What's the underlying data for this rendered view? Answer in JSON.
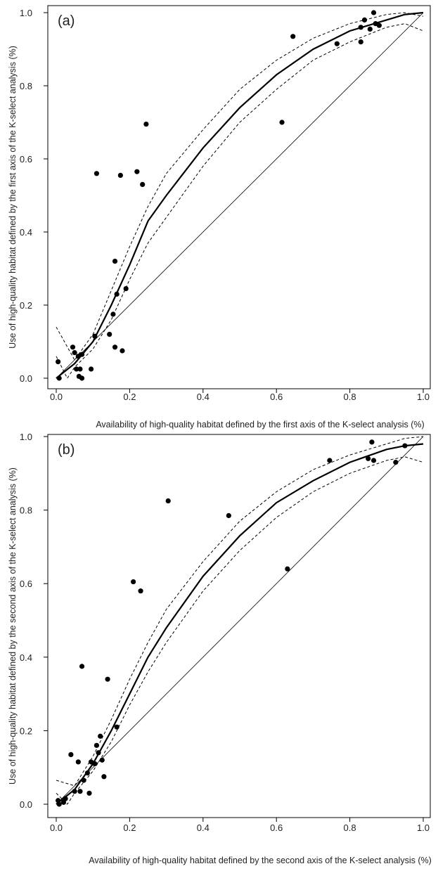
{
  "chart_data": [
    {
      "type": "scatter",
      "panel_label": "(a)",
      "xlabel": "Availability of high-quality habitat defined by the first axis of the K-select analysis (%)",
      "ylabel": "Use of high-quality habitat defined by the first axis of the K-select analysis (%)",
      "xlim": [
        0,
        1
      ],
      "ylim": [
        0,
        1
      ],
      "x_ticks": [
        "0.0",
        "0.2",
        "0.4",
        "0.6",
        "0.8",
        "1.0"
      ],
      "y_ticks": [
        "0.0",
        "0.2",
        "0.4",
        "0.6",
        "0.8",
        "1.0"
      ],
      "reference_line": "y = x",
      "fit_curve": {
        "style": "solid",
        "x": [
          0.0,
          0.05,
          0.1,
          0.15,
          0.2,
          0.25,
          0.3,
          0.4,
          0.5,
          0.6,
          0.7,
          0.8,
          0.9,
          0.95,
          1.0
        ],
        "y": [
          0.0,
          0.04,
          0.1,
          0.2,
          0.31,
          0.43,
          0.5,
          0.63,
          0.74,
          0.83,
          0.9,
          0.95,
          0.98,
          0.995,
          1.0
        ]
      },
      "ci_upper": {
        "style": "dashed",
        "x": [
          0.0,
          0.05,
          0.1,
          0.15,
          0.2,
          0.25,
          0.3,
          0.4,
          0.5,
          0.6,
          0.7,
          0.8,
          0.9,
          0.95,
          1.0
        ],
        "y": [
          0.14,
          0.05,
          0.12,
          0.24,
          0.36,
          0.47,
          0.56,
          0.68,
          0.79,
          0.87,
          0.93,
          0.97,
          0.995,
          1.0,
          0.99
        ]
      },
      "ci_lower": {
        "style": "dashed",
        "x": [
          0.0,
          0.03,
          0.05,
          0.1,
          0.15,
          0.2,
          0.25,
          0.3,
          0.4,
          0.5,
          0.6,
          0.7,
          0.8,
          0.9,
          0.95,
          1.0
        ],
        "y": [
          0.06,
          0.0,
          0.03,
          0.08,
          0.16,
          0.27,
          0.37,
          0.44,
          0.58,
          0.7,
          0.79,
          0.87,
          0.92,
          0.96,
          0.97,
          0.95
        ]
      },
      "points": [
        {
          "x": 0.005,
          "y": 0.045
        },
        {
          "x": 0.008,
          "y": 0.0
        },
        {
          "x": 0.045,
          "y": 0.085
        },
        {
          "x": 0.05,
          "y": 0.07
        },
        {
          "x": 0.055,
          "y": 0.025
        },
        {
          "x": 0.06,
          "y": 0.06
        },
        {
          "x": 0.062,
          "y": 0.005
        },
        {
          "x": 0.065,
          "y": 0.025
        },
        {
          "x": 0.07,
          "y": 0.0
        },
        {
          "x": 0.07,
          "y": 0.065
        },
        {
          "x": 0.095,
          "y": 0.025
        },
        {
          "x": 0.105,
          "y": 0.115
        },
        {
          "x": 0.11,
          "y": 0.56
        },
        {
          "x": 0.145,
          "y": 0.12
        },
        {
          "x": 0.155,
          "y": 0.175
        },
        {
          "x": 0.16,
          "y": 0.32
        },
        {
          "x": 0.16,
          "y": 0.085
        },
        {
          "x": 0.165,
          "y": 0.23
        },
        {
          "x": 0.175,
          "y": 0.555
        },
        {
          "x": 0.18,
          "y": 0.075
        },
        {
          "x": 0.19,
          "y": 0.245
        },
        {
          "x": 0.22,
          "y": 0.565
        },
        {
          "x": 0.235,
          "y": 0.53
        },
        {
          "x": 0.245,
          "y": 0.695
        },
        {
          "x": 0.615,
          "y": 0.7
        },
        {
          "x": 0.645,
          "y": 0.935
        },
        {
          "x": 0.765,
          "y": 0.915
        },
        {
          "x": 0.83,
          "y": 0.96
        },
        {
          "x": 0.83,
          "y": 0.92
        },
        {
          "x": 0.84,
          "y": 0.98
        },
        {
          "x": 0.855,
          "y": 0.955
        },
        {
          "x": 0.865,
          "y": 1.0
        },
        {
          "x": 0.87,
          "y": 0.97
        },
        {
          "x": 0.88,
          "y": 0.965
        }
      ]
    },
    {
      "type": "scatter",
      "panel_label": "(b)",
      "xlabel": "Availability of high-quality habitat defined by the second axis of the K-select analysis (%)",
      "ylabel": "Use of high-quality habitat defined by the second axis of the K-select analysis (%)",
      "xlim": [
        0,
        1
      ],
      "ylim": [
        0,
        1
      ],
      "x_ticks": [
        "0.0",
        "0.2",
        "0.4",
        "0.6",
        "0.8",
        "1.0"
      ],
      "y_ticks": [
        "0.0",
        "0.2",
        "0.4",
        "0.6",
        "0.8",
        "1.0"
      ],
      "reference_line": "y = x",
      "fit_curve": {
        "style": "solid",
        "x": [
          0.0,
          0.05,
          0.1,
          0.15,
          0.2,
          0.25,
          0.3,
          0.4,
          0.5,
          0.6,
          0.7,
          0.8,
          0.9,
          0.95,
          1.0
        ],
        "y": [
          0.0,
          0.04,
          0.11,
          0.2,
          0.3,
          0.4,
          0.48,
          0.62,
          0.73,
          0.82,
          0.88,
          0.93,
          0.965,
          0.975,
          0.98
        ]
      },
      "ci_upper": {
        "style": "dashed",
        "x": [
          0.0,
          0.05,
          0.1,
          0.15,
          0.2,
          0.25,
          0.3,
          0.4,
          0.5,
          0.6,
          0.7,
          0.8,
          0.9,
          0.95,
          1.0
        ],
        "y": [
          0.065,
          0.05,
          0.13,
          0.23,
          0.34,
          0.44,
          0.53,
          0.66,
          0.77,
          0.85,
          0.91,
          0.95,
          0.98,
          0.995,
          1.0
        ]
      },
      "ci_lower": {
        "style": "dashed",
        "x": [
          0.0,
          0.03,
          0.05,
          0.1,
          0.15,
          0.2,
          0.25,
          0.3,
          0.4,
          0.5,
          0.6,
          0.7,
          0.8,
          0.9,
          0.95,
          1.0
        ],
        "y": [
          0.03,
          0.0,
          0.03,
          0.09,
          0.17,
          0.27,
          0.36,
          0.44,
          0.58,
          0.69,
          0.78,
          0.85,
          0.9,
          0.935,
          0.945,
          0.93
        ]
      },
      "points": [
        {
          "x": 0.005,
          "y": 0.01
        },
        {
          "x": 0.008,
          "y": 0.0
        },
        {
          "x": 0.02,
          "y": 0.005
        },
        {
          "x": 0.025,
          "y": 0.015
        },
        {
          "x": 0.04,
          "y": 0.135
        },
        {
          "x": 0.05,
          "y": 0.035
        },
        {
          "x": 0.06,
          "y": 0.115
        },
        {
          "x": 0.065,
          "y": 0.035
        },
        {
          "x": 0.07,
          "y": 0.375
        },
        {
          "x": 0.075,
          "y": 0.065
        },
        {
          "x": 0.085,
          "y": 0.085
        },
        {
          "x": 0.09,
          "y": 0.03
        },
        {
          "x": 0.095,
          "y": 0.115
        },
        {
          "x": 0.105,
          "y": 0.11
        },
        {
          "x": 0.11,
          "y": 0.16
        },
        {
          "x": 0.115,
          "y": 0.14
        },
        {
          "x": 0.12,
          "y": 0.185
        },
        {
          "x": 0.125,
          "y": 0.12
        },
        {
          "x": 0.13,
          "y": 0.075
        },
        {
          "x": 0.14,
          "y": 0.34
        },
        {
          "x": 0.165,
          "y": 0.21
        },
        {
          "x": 0.21,
          "y": 0.605
        },
        {
          "x": 0.23,
          "y": 0.58
        },
        {
          "x": 0.305,
          "y": 0.825
        },
        {
          "x": 0.47,
          "y": 0.785
        },
        {
          "x": 0.63,
          "y": 0.64
        },
        {
          "x": 0.745,
          "y": 0.935
        },
        {
          "x": 0.85,
          "y": 0.94
        },
        {
          "x": 0.86,
          "y": 0.985
        },
        {
          "x": 0.865,
          "y": 0.935
        },
        {
          "x": 0.925,
          "y": 0.93
        },
        {
          "x": 0.95,
          "y": 0.975
        }
      ]
    }
  ]
}
